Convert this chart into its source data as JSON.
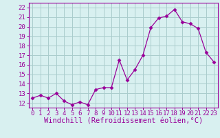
{
  "x": [
    0,
    1,
    2,
    3,
    4,
    5,
    6,
    7,
    8,
    9,
    10,
    11,
    12,
    13,
    14,
    15,
    16,
    17,
    18,
    19,
    20,
    21,
    22,
    23
  ],
  "y": [
    12.5,
    12.8,
    12.5,
    13.0,
    12.2,
    11.8,
    12.1,
    11.8,
    13.4,
    13.6,
    13.6,
    16.5,
    14.4,
    15.5,
    17.0,
    19.9,
    20.9,
    21.1,
    21.8,
    20.5,
    20.3,
    19.8,
    17.3,
    16.3
  ],
  "line_color": "#990099",
  "marker": "D",
  "marker_size": 2.5,
  "bg_color": "#d8f0f0",
  "grid_color": "#aacccc",
  "xlabel": "Windchill (Refroidissement éolien,°C)",
  "ylabel_ticks": [
    12,
    13,
    14,
    15,
    16,
    17,
    18,
    19,
    20,
    21,
    22
  ],
  "ylim": [
    11.5,
    22.5
  ],
  "xlim": [
    -0.5,
    23.5
  ],
  "xticks": [
    0,
    1,
    2,
    3,
    4,
    5,
    6,
    7,
    8,
    9,
    10,
    11,
    12,
    13,
    14,
    15,
    16,
    17,
    18,
    19,
    20,
    21,
    22,
    23
  ],
  "tick_fontsize": 6.5,
  "xlabel_fontsize": 7.5,
  "label_color": "#990099"
}
